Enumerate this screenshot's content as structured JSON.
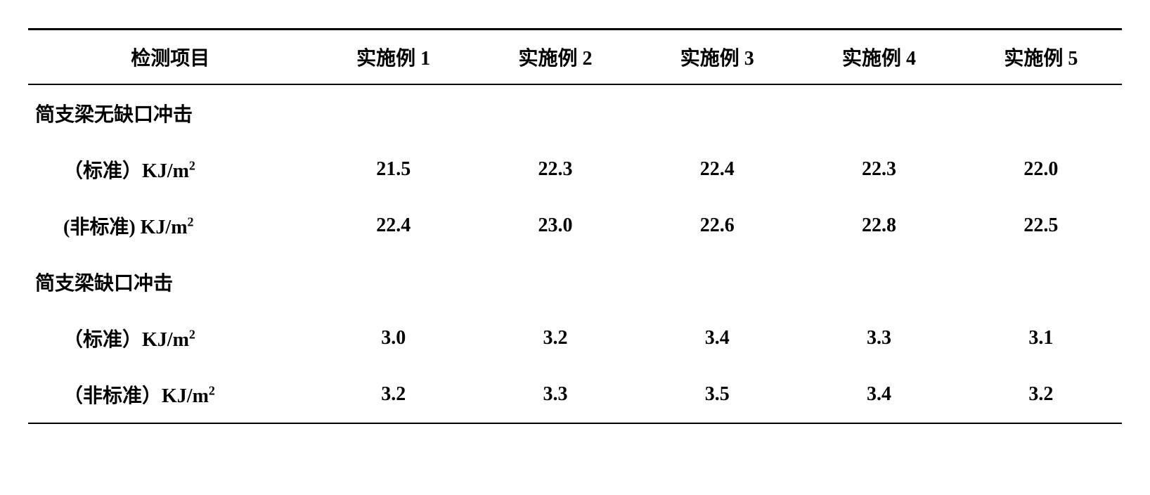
{
  "table": {
    "type": "table",
    "background_color": "#ffffff",
    "text_color": "#000000",
    "border_color": "#000000",
    "font_family": "SimSun",
    "header_fontsize": 28,
    "cell_fontsize": 28,
    "font_weight": "bold",
    "border_top_width": 3,
    "border_header_width": 2,
    "border_bottom_width": 2,
    "headers": {
      "col0": "检测项目",
      "col1": "实施例 1",
      "col2": "实施例 2",
      "col3": "实施例 3",
      "col4": "实施例 4",
      "col5": "实施例 5"
    },
    "rows": [
      {
        "type": "section",
        "label": "简支梁无缺口冲击",
        "values": [
          "",
          "",
          "",
          "",
          ""
        ]
      },
      {
        "type": "sub",
        "label_prefix": "（标准）",
        "label_unit": "KJ/m",
        "label_sup": "2",
        "values": [
          "21.5",
          "22.3",
          "22.4",
          "22.3",
          "22.0"
        ]
      },
      {
        "type": "sub",
        "label_prefix": "(非标准) ",
        "label_unit": "KJ/m",
        "label_sup": "2",
        "values": [
          "22.4",
          "23.0",
          "22.6",
          "22.8",
          "22.5"
        ]
      },
      {
        "type": "section",
        "label": "简支梁缺口冲击",
        "values": [
          "",
          "",
          "",
          "",
          ""
        ]
      },
      {
        "type": "sub",
        "label_prefix": "（标准）",
        "label_unit": "KJ/m",
        "label_sup": "2",
        "values": [
          "3.0",
          "3.2",
          "3.4",
          "3.3",
          "3.1"
        ]
      },
      {
        "type": "sub",
        "label_prefix": "（非标准）",
        "label_unit": "KJ/m",
        "label_sup": "2",
        "values": [
          "3.2",
          "3.3",
          "3.5",
          "3.4",
          "3.2"
        ]
      }
    ]
  }
}
